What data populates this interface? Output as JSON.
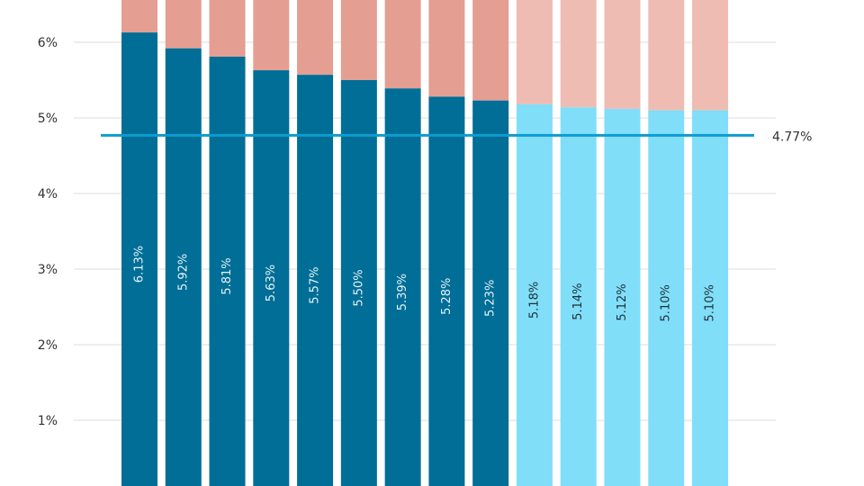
{
  "chart_data": {
    "type": "bar",
    "stacked": true,
    "ylim": [
      0,
      6.6
    ],
    "yticks": [
      "1%",
      "2%",
      "3%",
      "4%",
      "5%",
      "6%"
    ],
    "ytick_values": [
      1,
      2,
      3,
      4,
      5,
      6
    ],
    "grid": true,
    "values": [
      6.13,
      5.92,
      5.81,
      5.63,
      5.57,
      5.5,
      5.39,
      5.28,
      5.23,
      5.18,
      5.14,
      5.12,
      5.1,
      5.1
    ],
    "data_labels": [
      "6.13%",
      "5.92%",
      "5.81%",
      "5.63%",
      "5.57%",
      "5.50%",
      "5.39%",
      "5.28%",
      "5.23%",
      "5.18%",
      "5.14%",
      "5.12%",
      "5.10%",
      "5.10%"
    ],
    "highlight_count": 9,
    "reference_line": {
      "value": 4.77,
      "label": "4.77%"
    },
    "colors": {
      "primary": "#006E96",
      "primary_light": "#80DEF8",
      "remainder": "#E49E92",
      "remainder_light": "#EEBCB3",
      "reference": "#0E9BD0",
      "grid": "#DDDDDD"
    }
  }
}
